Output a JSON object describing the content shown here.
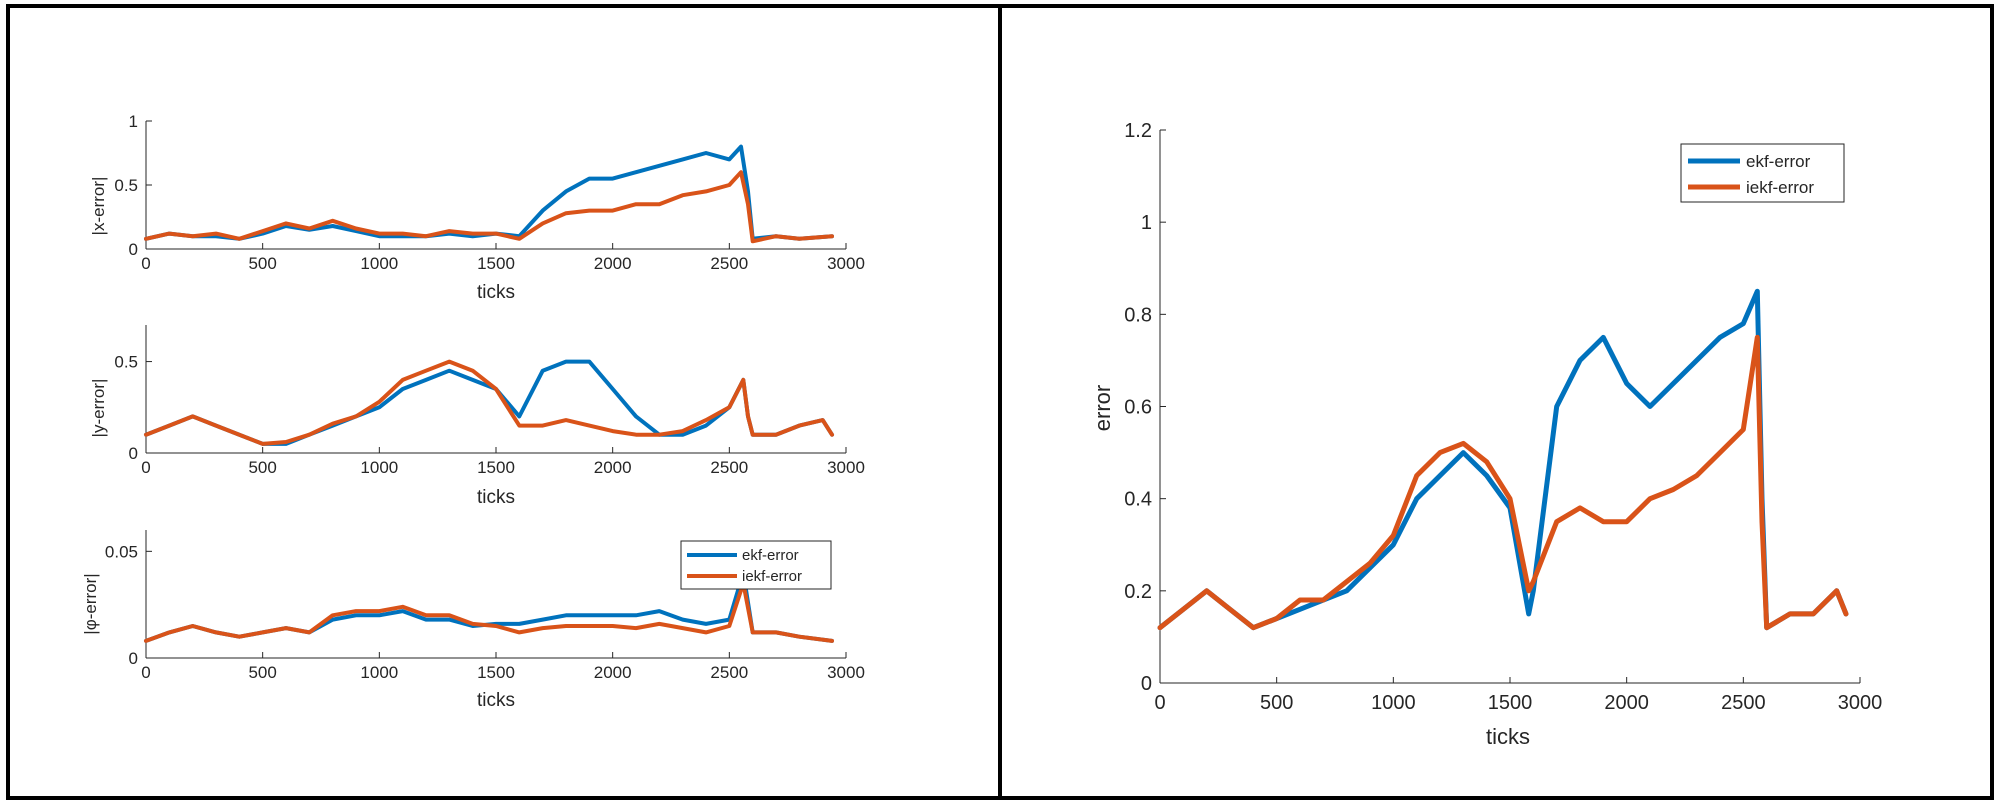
{
  "colors": {
    "ekf": "#0072BD",
    "iekf": "#D95319",
    "axis": "#262626",
    "frame": "#000000"
  },
  "panels": {
    "left": {
      "subplots": [
        {
          "ylabel": "|x-error|",
          "xlabel": "ticks"
        },
        {
          "ylabel": "|y-error|",
          "xlabel": "ticks"
        },
        {
          "ylabel": "|φ-error|",
          "xlabel": "ticks"
        }
      ],
      "legend": {
        "entries": [
          "ekf-error",
          "iekf-error"
        ],
        "placement": "top-right of third subplot"
      }
    },
    "right": {
      "ylabel": "error",
      "xlabel": "ticks",
      "legend": {
        "entries": [
          "ekf-error",
          "iekf-error"
        ],
        "placement": "top-right"
      }
    }
  },
  "chart_data": [
    {
      "type": "line",
      "ylabel": "|x-error|",
      "xlabel": "ticks",
      "xlim": [
        0,
        3000
      ],
      "ylim": [
        0,
        1
      ],
      "xticks": [
        0,
        500,
        1000,
        1500,
        2000,
        2500,
        3000
      ],
      "yticks": [
        0,
        0.5,
        1
      ],
      "ytick_labels": [
        "0",
        "0.5",
        "1"
      ],
      "x": [
        0,
        100,
        200,
        300,
        400,
        500,
        600,
        700,
        800,
        900,
        1000,
        1100,
        1200,
        1300,
        1400,
        1500,
        1600,
        1700,
        1800,
        1900,
        2000,
        2100,
        2200,
        2300,
        2400,
        2500,
        2550,
        2580,
        2600,
        2700,
        2800,
        2940
      ],
      "series": [
        {
          "name": "ekf-error",
          "values": [
            0.08,
            0.12,
            0.1,
            0.1,
            0.08,
            0.12,
            0.18,
            0.15,
            0.18,
            0.14,
            0.1,
            0.1,
            0.1,
            0.12,
            0.1,
            0.12,
            0.1,
            0.3,
            0.45,
            0.55,
            0.55,
            0.6,
            0.65,
            0.7,
            0.75,
            0.7,
            0.8,
            0.45,
            0.08,
            0.1,
            0.08,
            0.1
          ]
        },
        {
          "name": "iekf-error",
          "values": [
            0.08,
            0.12,
            0.1,
            0.12,
            0.08,
            0.14,
            0.2,
            0.16,
            0.22,
            0.16,
            0.12,
            0.12,
            0.1,
            0.14,
            0.12,
            0.12,
            0.08,
            0.2,
            0.28,
            0.3,
            0.3,
            0.35,
            0.35,
            0.42,
            0.45,
            0.5,
            0.6,
            0.35,
            0.06,
            0.1,
            0.08,
            0.1
          ]
        }
      ]
    },
    {
      "type": "line",
      "ylabel": "|y-error|",
      "xlabel": "ticks",
      "xlim": [
        0,
        3000
      ],
      "ylim": [
        0,
        0.7
      ],
      "xticks": [
        0,
        500,
        1000,
        1500,
        2000,
        2500,
        3000
      ],
      "yticks": [
        0,
        0.5
      ],
      "ytick_labels": [
        "0",
        "0.5"
      ],
      "x": [
        0,
        100,
        200,
        300,
        400,
        500,
        600,
        700,
        800,
        900,
        1000,
        1100,
        1200,
        1300,
        1400,
        1500,
        1600,
        1700,
        1800,
        1900,
        2000,
        2100,
        2200,
        2300,
        2400,
        2500,
        2560,
        2580,
        2600,
        2700,
        2800,
        2900,
        2940
      ],
      "series": [
        {
          "name": "ekf-error",
          "values": [
            0.1,
            0.15,
            0.2,
            0.15,
            0.1,
            0.05,
            0.05,
            0.1,
            0.15,
            0.2,
            0.25,
            0.35,
            0.4,
            0.45,
            0.4,
            0.35,
            0.2,
            0.45,
            0.5,
            0.5,
            0.35,
            0.2,
            0.1,
            0.1,
            0.15,
            0.25,
            0.4,
            0.2,
            0.1,
            0.1,
            0.15,
            0.18,
            0.1
          ]
        },
        {
          "name": "iekf-error",
          "values": [
            0.1,
            0.15,
            0.2,
            0.15,
            0.1,
            0.05,
            0.06,
            0.1,
            0.16,
            0.2,
            0.28,
            0.4,
            0.45,
            0.5,
            0.45,
            0.35,
            0.15,
            0.15,
            0.18,
            0.15,
            0.12,
            0.1,
            0.1,
            0.12,
            0.18,
            0.25,
            0.4,
            0.2,
            0.1,
            0.1,
            0.15,
            0.18,
            0.1
          ]
        }
      ]
    },
    {
      "type": "line",
      "ylabel": "|φ-error|",
      "xlabel": "ticks",
      "xlim": [
        0,
        3000
      ],
      "ylim": [
        0,
        0.06
      ],
      "xticks": [
        0,
        500,
        1000,
        1500,
        2000,
        2500,
        3000
      ],
      "yticks": [
        0,
        0.05
      ],
      "ytick_labels": [
        "0",
        "0.05"
      ],
      "x": [
        0,
        100,
        200,
        300,
        400,
        500,
        600,
        700,
        800,
        900,
        1000,
        1100,
        1200,
        1300,
        1400,
        1500,
        1600,
        1700,
        1800,
        1900,
        2000,
        2100,
        2200,
        2300,
        2400,
        2500,
        2560,
        2600,
        2700,
        2800,
        2940
      ],
      "series": [
        {
          "name": "ekf-error",
          "values": [
            0.008,
            0.012,
            0.015,
            0.012,
            0.01,
            0.012,
            0.014,
            0.012,
            0.018,
            0.02,
            0.02,
            0.022,
            0.018,
            0.018,
            0.015,
            0.016,
            0.016,
            0.018,
            0.02,
            0.02,
            0.02,
            0.02,
            0.022,
            0.018,
            0.016,
            0.018,
            0.04,
            0.012,
            0.012,
            0.01,
            0.008
          ]
        },
        {
          "name": "iekf-error",
          "values": [
            0.008,
            0.012,
            0.015,
            0.012,
            0.01,
            0.012,
            0.014,
            0.012,
            0.02,
            0.022,
            0.022,
            0.024,
            0.02,
            0.02,
            0.016,
            0.015,
            0.012,
            0.014,
            0.015,
            0.015,
            0.015,
            0.014,
            0.016,
            0.014,
            0.012,
            0.015,
            0.035,
            0.012,
            0.012,
            0.01,
            0.008
          ]
        }
      ]
    },
    {
      "type": "line",
      "ylabel": "error",
      "xlabel": "ticks",
      "xlim": [
        0,
        3000
      ],
      "ylim": [
        0,
        1.2
      ],
      "xticks": [
        0,
        500,
        1000,
        1500,
        2000,
        2500,
        3000
      ],
      "yticks": [
        0,
        0.2,
        0.4,
        0.6,
        0.8,
        1,
        1.2
      ],
      "ytick_labels": [
        "0",
        "0.2",
        "0.4",
        "0.6",
        "0.8",
        "1",
        "1.2"
      ],
      "x": [
        0,
        100,
        200,
        300,
        400,
        500,
        600,
        700,
        800,
        900,
        1000,
        1100,
        1200,
        1300,
        1400,
        1500,
        1580,
        1600,
        1700,
        1800,
        1900,
        2000,
        2100,
        2200,
        2300,
        2400,
        2500,
        2560,
        2580,
        2600,
        2700,
        2800,
        2900,
        2940
      ],
      "series": [
        {
          "name": "ekf-error",
          "values": [
            0.12,
            0.16,
            0.2,
            0.16,
            0.12,
            0.14,
            0.16,
            0.18,
            0.2,
            0.25,
            0.3,
            0.4,
            0.45,
            0.5,
            0.45,
            0.38,
            0.15,
            0.2,
            0.6,
            0.7,
            0.75,
            0.65,
            0.6,
            0.65,
            0.7,
            0.75,
            0.78,
            0.85,
            0.4,
            0.12,
            0.15,
            0.15,
            0.2,
            0.15
          ]
        },
        {
          "name": "iekf-error",
          "values": [
            0.12,
            0.16,
            0.2,
            0.16,
            0.12,
            0.14,
            0.18,
            0.18,
            0.22,
            0.26,
            0.32,
            0.45,
            0.5,
            0.52,
            0.48,
            0.4,
            0.2,
            0.22,
            0.35,
            0.38,
            0.35,
            0.35,
            0.4,
            0.42,
            0.45,
            0.5,
            0.55,
            0.75,
            0.35,
            0.12,
            0.15,
            0.15,
            0.2,
            0.15
          ]
        }
      ]
    }
  ]
}
